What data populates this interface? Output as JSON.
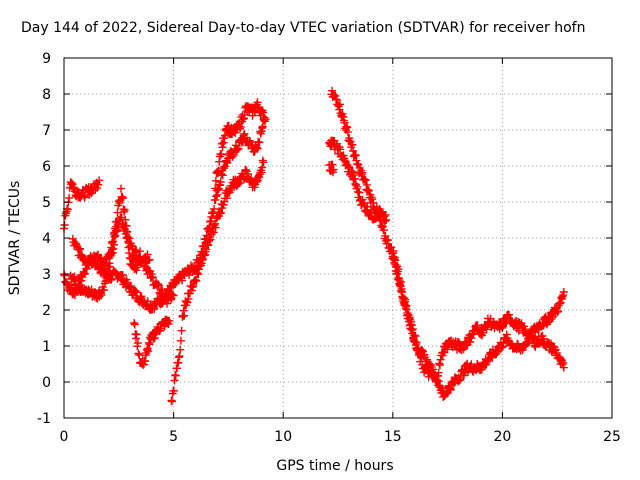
{
  "chart_data": {
    "type": "scatter",
    "title": "Day 144 of 2022, Sidereal Day-to-day VTEC variation (SDTVAR) for receiver hofn",
    "xlabel": "GPS time / hours",
    "ylabel": "SDTVAR / TECUs",
    "xlim": [
      0,
      25
    ],
    "ylim": [
      -1,
      9
    ],
    "xticks": [
      0,
      5,
      10,
      15,
      20,
      25
    ],
    "yticks": [
      -1,
      0,
      1,
      2,
      3,
      4,
      5,
      6,
      7,
      8,
      9
    ],
    "grid": true,
    "marker": "plus",
    "series": [
      {
        "name": "SDTVAR",
        "color": "#ff0000",
        "tracks": [
          [
            [
              0.0,
              3.0
            ],
            [
              0.2,
              2.6
            ],
            [
              0.5,
              2.5
            ],
            [
              0.8,
              2.9
            ],
            [
              1.2,
              3.4
            ],
            [
              1.6,
              3.2
            ],
            [
              2.0,
              2.9
            ],
            [
              2.5,
              3.0
            ],
            [
              3.0,
              2.6
            ],
            [
              3.5,
              2.3
            ],
            [
              4.0,
              2.1
            ],
            [
              4.5,
              2.3
            ],
            [
              5.0,
              2.7
            ],
            [
              5.5,
              3.0
            ],
            [
              6.0,
              3.2
            ],
            [
              6.3,
              3.6
            ],
            [
              6.6,
              4.3
            ],
            [
              7.0,
              5.3
            ],
            [
              7.3,
              6.0
            ],
            [
              7.6,
              6.3
            ],
            [
              7.9,
              6.5
            ],
            [
              8.2,
              6.8
            ],
            [
              8.5,
              6.6
            ],
            [
              8.8,
              6.4
            ],
            [
              9.1,
              7.3
            ]
          ],
          [
            [
              0.0,
              4.3
            ],
            [
              0.2,
              5.0
            ],
            [
              0.3,
              5.6
            ],
            [
              0.5,
              5.3
            ],
            [
              0.8,
              5.2
            ],
            [
              1.1,
              5.3
            ],
            [
              1.4,
              5.4
            ],
            [
              1.6,
              5.6
            ]
          ],
          [
            [
              0.3,
              3.0
            ],
            [
              0.6,
              2.7
            ],
            [
              0.9,
              2.5
            ],
            [
              1.2,
              2.5
            ],
            [
              1.5,
              2.4
            ],
            [
              1.8,
              2.6
            ],
            [
              2.1,
              3.3
            ],
            [
              2.4,
              4.2
            ],
            [
              2.6,
              4.6
            ],
            [
              2.9,
              4.0
            ],
            [
              3.2,
              3.6
            ],
            [
              3.5,
              3.5
            ],
            [
              3.9,
              3.0
            ],
            [
              4.3,
              2.6
            ],
            [
              4.7,
              2.3
            ],
            [
              5.0,
              2.4
            ]
          ],
          [
            [
              0.4,
              3.9
            ],
            [
              0.7,
              3.6
            ],
            [
              1.0,
              3.4
            ],
            [
              1.4,
              3.5
            ],
            [
              1.8,
              3.3
            ],
            [
              2.1,
              3.5
            ],
            [
              2.3,
              4.1
            ],
            [
              2.5,
              4.9
            ],
            [
              2.6,
              5.3
            ],
            [
              2.8,
              4.6
            ],
            [
              3.0,
              3.4
            ],
            [
              3.3,
              3.2
            ],
            [
              3.6,
              3.5
            ],
            [
              3.9,
              3.4
            ]
          ],
          [
            [
              3.2,
              1.6
            ],
            [
              3.4,
              0.9
            ],
            [
              3.5,
              0.5
            ],
            [
              3.7,
              0.6
            ],
            [
              3.9,
              1.1
            ],
            [
              4.2,
              1.4
            ],
            [
              4.5,
              1.6
            ],
            [
              4.8,
              1.7
            ]
          ],
          [
            [
              4.9,
              -0.6
            ],
            [
              5.1,
              0.2
            ],
            [
              5.3,
              0.9
            ],
            [
              5.4,
              1.7
            ],
            [
              5.6,
              2.3
            ],
            [
              5.8,
              2.6
            ],
            [
              6.1,
              3.0
            ],
            [
              6.4,
              3.6
            ],
            [
              6.8,
              4.2
            ],
            [
              7.1,
              4.7
            ],
            [
              7.4,
              5.2
            ],
            [
              7.7,
              5.5
            ],
            [
              8.0,
              5.6
            ],
            [
              8.3,
              5.8
            ],
            [
              8.6,
              5.5
            ],
            [
              8.9,
              5.6
            ],
            [
              9.1,
              6.1
            ]
          ],
          [
            [
              6.9,
              5.5
            ],
            [
              7.2,
              6.5
            ],
            [
              7.4,
              7.1
            ],
            [
              7.7,
              6.9
            ],
            [
              8.0,
              7.1
            ],
            [
              8.3,
              7.6
            ],
            [
              8.6,
              7.5
            ],
            [
              8.8,
              7.7
            ],
            [
              9.0,
              7.5
            ],
            [
              9.2,
              7.3
            ]
          ],
          [
            [
              12.1,
              6.0
            ],
            [
              12.3,
              5.9
            ]
          ],
          [
            [
              12.1,
              6.7
            ],
            [
              12.3,
              6.6
            ],
            [
              12.6,
              6.4
            ],
            [
              12.9,
              6.0
            ],
            [
              13.2,
              5.7
            ],
            [
              13.5,
              5.1
            ],
            [
              13.8,
              4.8
            ],
            [
              14.1,
              4.6
            ],
            [
              14.4,
              4.7
            ],
            [
              14.7,
              4.5
            ]
          ],
          [
            [
              12.2,
              8.0
            ],
            [
              12.5,
              7.8
            ],
            [
              12.8,
              7.2
            ],
            [
              13.1,
              6.6
            ],
            [
              13.4,
              6.0
            ],
            [
              13.7,
              5.6
            ],
            [
              14.0,
              5.1
            ],
            [
              14.3,
              4.7
            ],
            [
              14.6,
              4.1
            ],
            [
              14.9,
              3.7
            ],
            [
              15.2,
              3.2
            ],
            [
              15.4,
              2.6
            ],
            [
              15.6,
              2.1
            ],
            [
              15.8,
              1.7
            ],
            [
              16.0,
              1.2
            ],
            [
              16.2,
              0.9
            ],
            [
              16.5,
              0.6
            ],
            [
              16.8,
              0.3
            ],
            [
              17.1,
              0.0
            ],
            [
              17.3,
              -0.4
            ],
            [
              17.5,
              -0.2
            ],
            [
              17.8,
              0.0
            ],
            [
              18.1,
              0.2
            ],
            [
              18.4,
              0.4
            ],
            [
              18.7,
              0.4
            ],
            [
              19.0,
              0.4
            ],
            [
              19.3,
              0.6
            ],
            [
              19.6,
              0.8
            ],
            [
              19.9,
              1.0
            ],
            [
              20.2,
              1.2
            ],
            [
              20.5,
              1.0
            ],
            [
              20.8,
              0.9
            ],
            [
              21.1,
              1.1
            ],
            [
              21.4,
              1.4
            ],
            [
              21.7,
              1.6
            ],
            [
              22.0,
              1.7
            ],
            [
              22.3,
              1.9
            ],
            [
              22.6,
              2.1
            ],
            [
              22.8,
              2.5
            ]
          ],
          [
            [
              15.0,
              3.6
            ],
            [
              15.2,
              3.0
            ],
            [
              15.5,
              2.3
            ],
            [
              15.8,
              1.6
            ],
            [
              16.1,
              0.9
            ],
            [
              16.4,
              0.4
            ],
            [
              16.7,
              0.2
            ],
            [
              17.0,
              0.1
            ],
            [
              17.3,
              0.9
            ],
            [
              17.6,
              1.1
            ],
            [
              17.9,
              1.0
            ],
            [
              18.2,
              1.0
            ],
            [
              18.5,
              1.2
            ],
            [
              18.8,
              1.5
            ],
            [
              19.1,
              1.4
            ],
            [
              19.4,
              1.7
            ],
            [
              19.7,
              1.5
            ],
            [
              20.0,
              1.6
            ],
            [
              20.3,
              1.8
            ],
            [
              20.6,
              1.6
            ],
            [
              20.9,
              1.5
            ],
            [
              21.2,
              1.3
            ],
            [
              21.5,
              1.1
            ],
            [
              21.8,
              1.2
            ],
            [
              22.1,
              1.0
            ],
            [
              22.4,
              0.9
            ],
            [
              22.6,
              0.6
            ],
            [
              22.8,
              0.4
            ]
          ]
        ]
      }
    ]
  }
}
